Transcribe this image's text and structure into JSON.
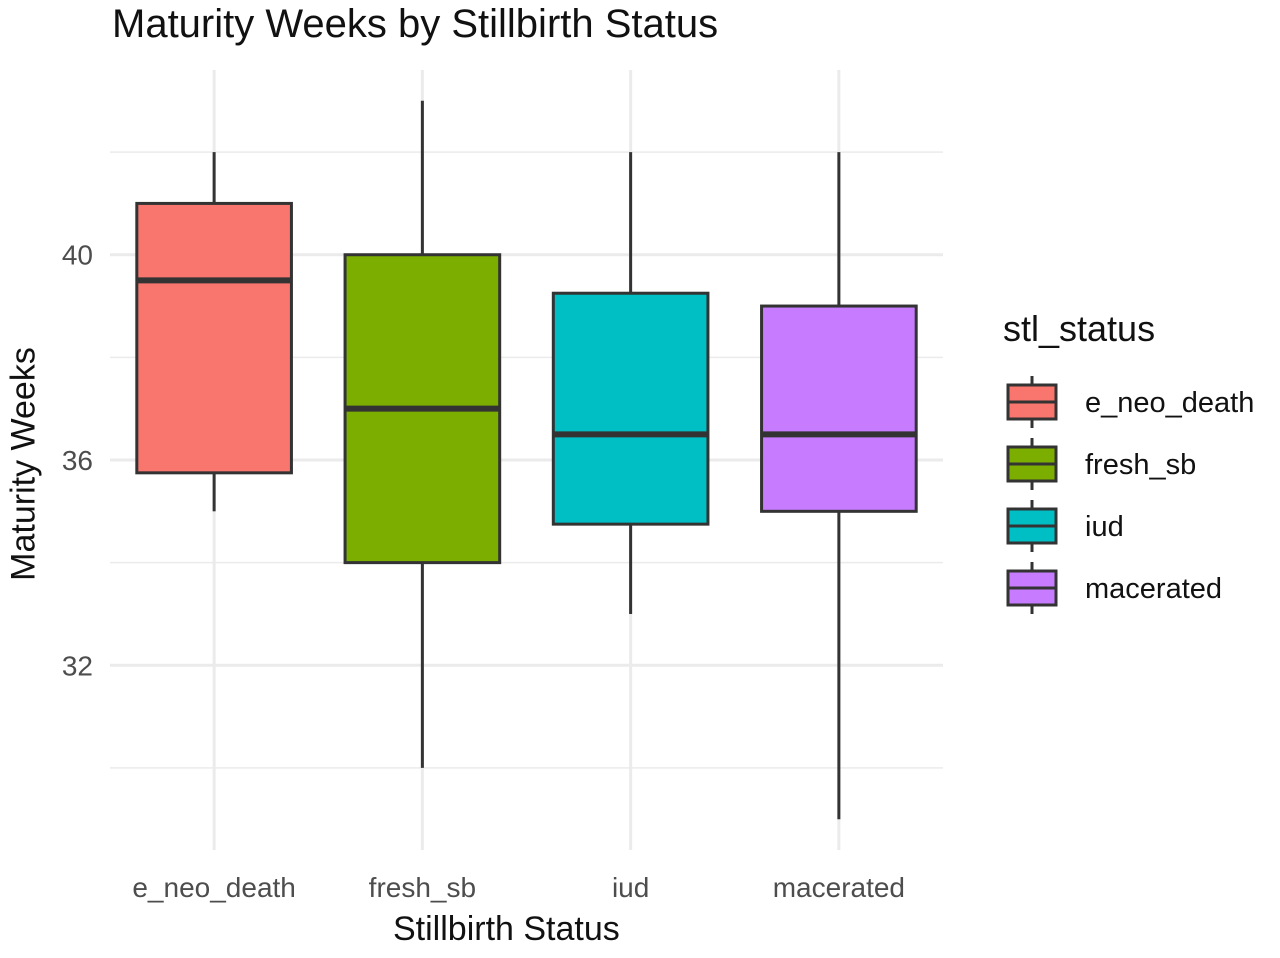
{
  "chart_data": {
    "type": "box",
    "title": "Maturity Weeks by Stillbirth Status",
    "xlabel": "Stillbirth Status",
    "ylabel": "Maturity Weeks",
    "ylim": [
      28.4,
      43.6
    ],
    "yticks": [
      32,
      36,
      40
    ],
    "grid": true,
    "legend_title": "stl_status",
    "legend_position": "right",
    "categories": [
      "e_neo_death",
      "fresh_sb",
      "iud",
      "macerated"
    ],
    "boxes": [
      {
        "category": "e_neo_death",
        "min": 35,
        "q1": 35.75,
        "median": 39.5,
        "q3": 41,
        "max": 42,
        "color": "#F8766D"
      },
      {
        "category": "fresh_sb",
        "min": 30,
        "q1": 34,
        "median": 37,
        "q3": 40,
        "max": 43,
        "color": "#7CAE00"
      },
      {
        "category": "iud",
        "min": 33,
        "q1": 34.75,
        "median": 36.5,
        "q3": 39.25,
        "max": 42,
        "color": "#00BFC4"
      },
      {
        "category": "macerated",
        "min": 29,
        "q1": 35,
        "median": 36.5,
        "q3": 39,
        "max": 42,
        "color": "#C77CFF"
      }
    ]
  }
}
